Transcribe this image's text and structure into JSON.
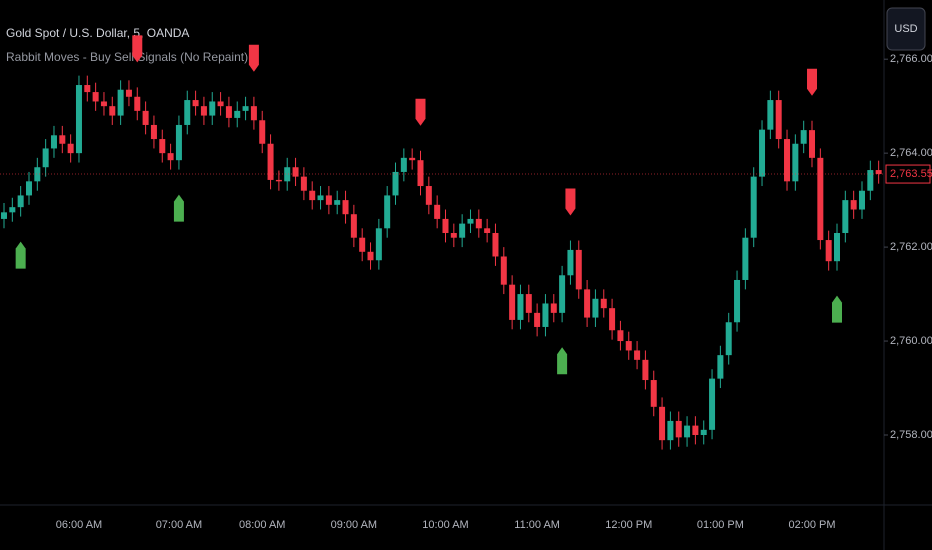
{
  "chart_data": {
    "type": "candlestick",
    "title": "Gold Spot / U.S. Dollar, 5, OANDA",
    "subtitle": "Rabbit Moves - Buy Sell Signals (No Repaint)",
    "currency": "USD",
    "up_color": "#22ab94",
    "down_color": "#f23645",
    "buy_color": "#4caf50",
    "sell_color": "#f23645",
    "ylim": [
      2756.51,
      2767.26
    ],
    "yticks": [
      {
        "value": 2758,
        "label": "2,758.000"
      },
      {
        "value": 2760,
        "label": "2,760.000"
      },
      {
        "value": 2762,
        "label": "2,762.000"
      },
      {
        "value": 2764,
        "label": "2,764.000"
      },
      {
        "value": 2766,
        "label": "2,766.000"
      }
    ],
    "last_price": {
      "value": 2763.555,
      "label": "2,763.555"
    },
    "categories": [
      null,
      null,
      null,
      null,
      null,
      null,
      null,
      null,
      null,
      "06:00 AM",
      null,
      null,
      null,
      null,
      null,
      null,
      null,
      null,
      null,
      null,
      null,
      "07:00 AM",
      null,
      null,
      null,
      null,
      null,
      null,
      null,
      null,
      null,
      "08:00 AM",
      null,
      null,
      null,
      null,
      null,
      null,
      null,
      null,
      null,
      null,
      "09:00 AM",
      null,
      null,
      null,
      null,
      null,
      null,
      null,
      null,
      null,
      null,
      "10:00 AM",
      null,
      null,
      null,
      null,
      null,
      null,
      null,
      null,
      null,
      null,
      "11:00 AM",
      null,
      null,
      null,
      null,
      null,
      null,
      null,
      null,
      null,
      null,
      "12:00 PM",
      null,
      null,
      null,
      null,
      null,
      null,
      null,
      null,
      null,
      null,
      "01:00 PM",
      null,
      null,
      null,
      null,
      null,
      null,
      null,
      null,
      null,
      null,
      "02:00 PM",
      null,
      null,
      null,
      null,
      null,
      null,
      null,
      null
    ],
    "open": [
      2762.6,
      2762.74,
      2762.85,
      2763.1,
      2763.4,
      2763.7,
      2764.1,
      2764.38,
      2764.2,
      2764.0,
      2765.45,
      2765.3,
      2765.1,
      2765.0,
      2764.8,
      2765.35,
      2765.2,
      2764.9,
      2764.6,
      2764.3,
      2764.0,
      2763.85,
      2764.6,
      2765.13,
      2765.0,
      2764.8,
      2765.1,
      2765.0,
      2764.75,
      2764.9,
      2765.0,
      2764.7,
      2764.2,
      2763.43,
      2763.4,
      2763.7,
      2763.5,
      2763.2,
      2763.0,
      2763.1,
      2762.9,
      2763.0,
      2762.7,
      2762.2,
      2761.9,
      2761.72,
      2762.4,
      2763.1,
      2763.6,
      2763.9,
      2763.85,
      2763.3,
      2762.9,
      2762.6,
      2762.3,
      2762.2,
      2762.5,
      2762.6,
      2762.4,
      2762.3,
      2761.8,
      2761.2,
      2760.45,
      2761.0,
      2760.6,
      2760.3,
      2760.8,
      2760.6,
      2761.4,
      2761.94,
      2761.1,
      2760.5,
      2760.9,
      2760.7,
      2760.23,
      2760.0,
      2759.8,
      2759.6,
      2759.17,
      2758.6,
      2757.89,
      2758.3,
      2757.95,
      2758.2,
      2758.0,
      2758.11,
      2759.2,
      2759.7,
      2760.4,
      2761.3,
      2762.2,
      2763.5,
      2764.5,
      2765.13,
      2764.3,
      2763.4,
      2764.2,
      2764.49,
      2763.9,
      2762.15,
      2761.7,
      2762.3,
      2763.0,
      2762.8,
      2763.2,
      2763.64
    ],
    "high": [
      2762.94,
      2763.05,
      2763.3,
      2763.6,
      2763.9,
      2764.3,
      2764.58,
      2764.58,
      2764.4,
      2765.65,
      2765.65,
      2765.5,
      2765.3,
      2765.2,
      2765.55,
      2765.55,
      2765.4,
      2765.1,
      2764.8,
      2764.5,
      2764.2,
      2764.8,
      2765.33,
      2765.33,
      2765.2,
      2765.3,
      2765.3,
      2765.2,
      2765.1,
      2765.2,
      2765.2,
      2764.9,
      2764.4,
      2763.63,
      2763.9,
      2763.9,
      2763.7,
      2763.4,
      2763.3,
      2763.3,
      2763.2,
      2763.2,
      2762.9,
      2762.4,
      2762.1,
      2762.6,
      2763.3,
      2763.8,
      2764.1,
      2764.1,
      2764.05,
      2763.5,
      2763.1,
      2762.8,
      2762.5,
      2762.7,
      2762.8,
      2762.8,
      2762.6,
      2762.5,
      2762.0,
      2761.4,
      2761.2,
      2761.2,
      2760.8,
      2761.0,
      2761.0,
      2761.6,
      2762.14,
      2762.14,
      2761.3,
      2761.1,
      2761.1,
      2760.9,
      2760.43,
      2760.2,
      2760.0,
      2759.8,
      2759.37,
      2758.8,
      2758.5,
      2758.5,
      2758.4,
      2758.4,
      2758.31,
      2759.4,
      2759.9,
      2760.6,
      2761.5,
      2762.4,
      2763.7,
      2764.7,
      2765.33,
      2765.33,
      2764.5,
      2764.4,
      2764.69,
      2764.69,
      2764.1,
      2762.35,
      2762.5,
      2763.2,
      2763.2,
      2763.4,
      2763.84,
      2763.84
    ],
    "low": [
      2762.4,
      2762.54,
      2762.65,
      2762.9,
      2763.2,
      2763.5,
      2763.9,
      2764.0,
      2763.8,
      2763.8,
      2765.1,
      2764.9,
      2764.8,
      2764.6,
      2764.6,
      2765.0,
      2764.7,
      2764.4,
      2764.1,
      2763.8,
      2763.65,
      2763.65,
      2764.4,
      2764.8,
      2764.6,
      2764.6,
      2764.8,
      2764.55,
      2764.55,
      2764.7,
      2764.5,
      2764.0,
      2763.23,
      2763.2,
      2763.2,
      2763.3,
      2763.0,
      2762.8,
      2762.8,
      2762.7,
      2762.7,
      2762.5,
      2762.0,
      2761.7,
      2761.52,
      2761.52,
      2762.2,
      2762.9,
      2763.4,
      2763.65,
      2763.1,
      2762.7,
      2762.4,
      2762.1,
      2762.0,
      2762.0,
      2762.3,
      2762.2,
      2762.1,
      2761.6,
      2761.0,
      2760.25,
      2760.25,
      2760.4,
      2760.1,
      2760.1,
      2760.4,
      2760.4,
      2761.2,
      2760.9,
      2760.3,
      2760.3,
      2760.5,
      2760.03,
      2759.8,
      2759.6,
      2759.4,
      2758.97,
      2758.4,
      2757.69,
      2757.69,
      2757.75,
      2757.75,
      2757.8,
      2757.8,
      2757.91,
      2759.0,
      2759.5,
      2760.2,
      2761.1,
      2762.0,
      2763.3,
      2764.3,
      2764.1,
      2763.2,
      2763.2,
      2764.0,
      2763.7,
      2761.95,
      2761.5,
      2761.5,
      2762.1,
      2762.6,
      2762.6,
      2763.0,
      2763.35
    ],
    "close": [
      2762.74,
      2762.85,
      2763.1,
      2763.4,
      2763.7,
      2764.1,
      2764.38,
      2764.2,
      2764.0,
      2765.45,
      2765.3,
      2765.1,
      2765.0,
      2764.8,
      2765.35,
      2765.2,
      2764.9,
      2764.6,
      2764.3,
      2764.0,
      2763.85,
      2764.6,
      2765.13,
      2765.0,
      2764.8,
      2765.1,
      2765.0,
      2764.75,
      2764.9,
      2765.0,
      2764.7,
      2764.2,
      2763.43,
      2763.4,
      2763.7,
      2763.5,
      2763.2,
      2763.0,
      2763.1,
      2762.9,
      2763.0,
      2762.7,
      2762.2,
      2761.9,
      2761.72,
      2762.4,
      2763.1,
      2763.6,
      2763.9,
      2763.85,
      2763.3,
      2762.9,
      2762.6,
      2762.3,
      2762.2,
      2762.5,
      2762.6,
      2762.4,
      2762.3,
      2761.8,
      2761.2,
      2760.45,
      2761.0,
      2760.6,
      2760.3,
      2760.8,
      2760.6,
      2761.4,
      2761.94,
      2761.1,
      2760.5,
      2760.9,
      2760.7,
      2760.23,
      2760.0,
      2759.8,
      2759.6,
      2759.17,
      2758.6,
      2757.89,
      2758.3,
      2757.95,
      2758.2,
      2758.0,
      2758.11,
      2759.2,
      2759.7,
      2760.4,
      2761.3,
      2762.2,
      2763.5,
      2764.5,
      2765.13,
      2764.3,
      2763.4,
      2764.2,
      2764.49,
      2763.9,
      2762.15,
      2761.7,
      2762.3,
      2763.0,
      2762.8,
      2763.2,
      2763.64,
      2763.555
    ],
    "sell_signals": [
      16,
      30,
      50,
      68,
      97
    ],
    "buy_signals": [
      2,
      21,
      67,
      100
    ]
  }
}
